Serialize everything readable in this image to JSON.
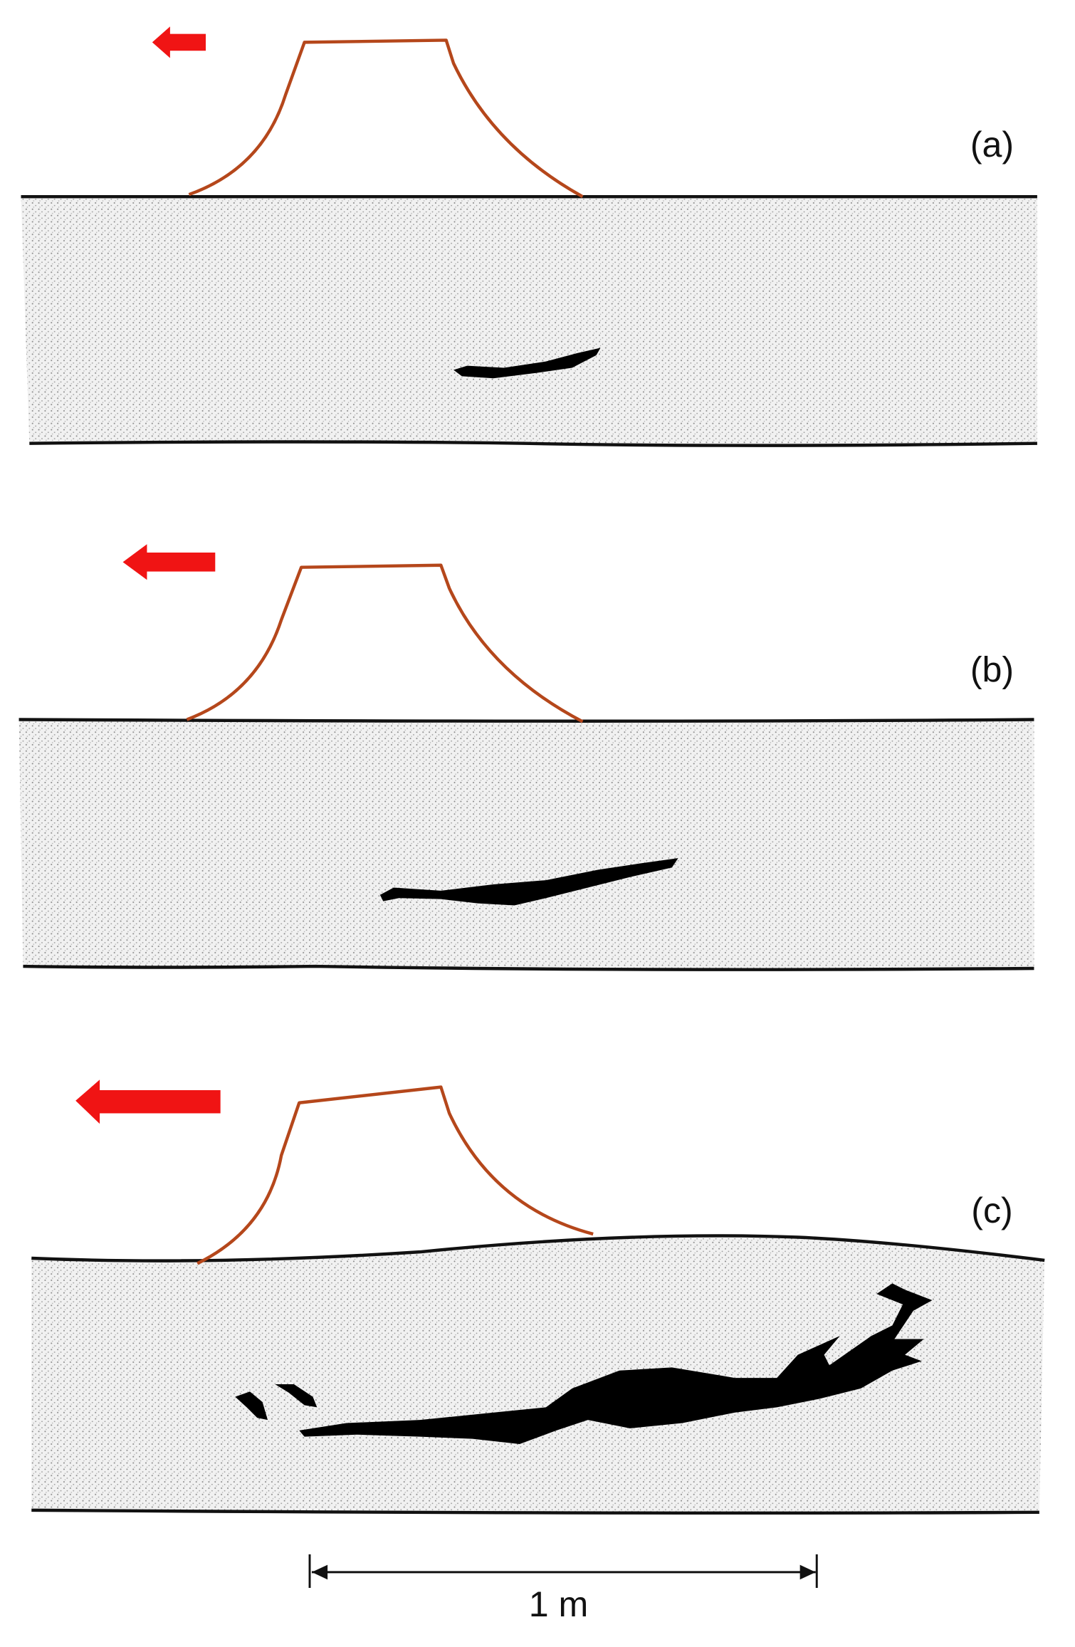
{
  "panels": [
    {
      "label": "(a)"
    },
    {
      "label": "(b)"
    },
    {
      "label": "(c)"
    }
  ],
  "scale_bar": {
    "label": "1 m"
  }
}
